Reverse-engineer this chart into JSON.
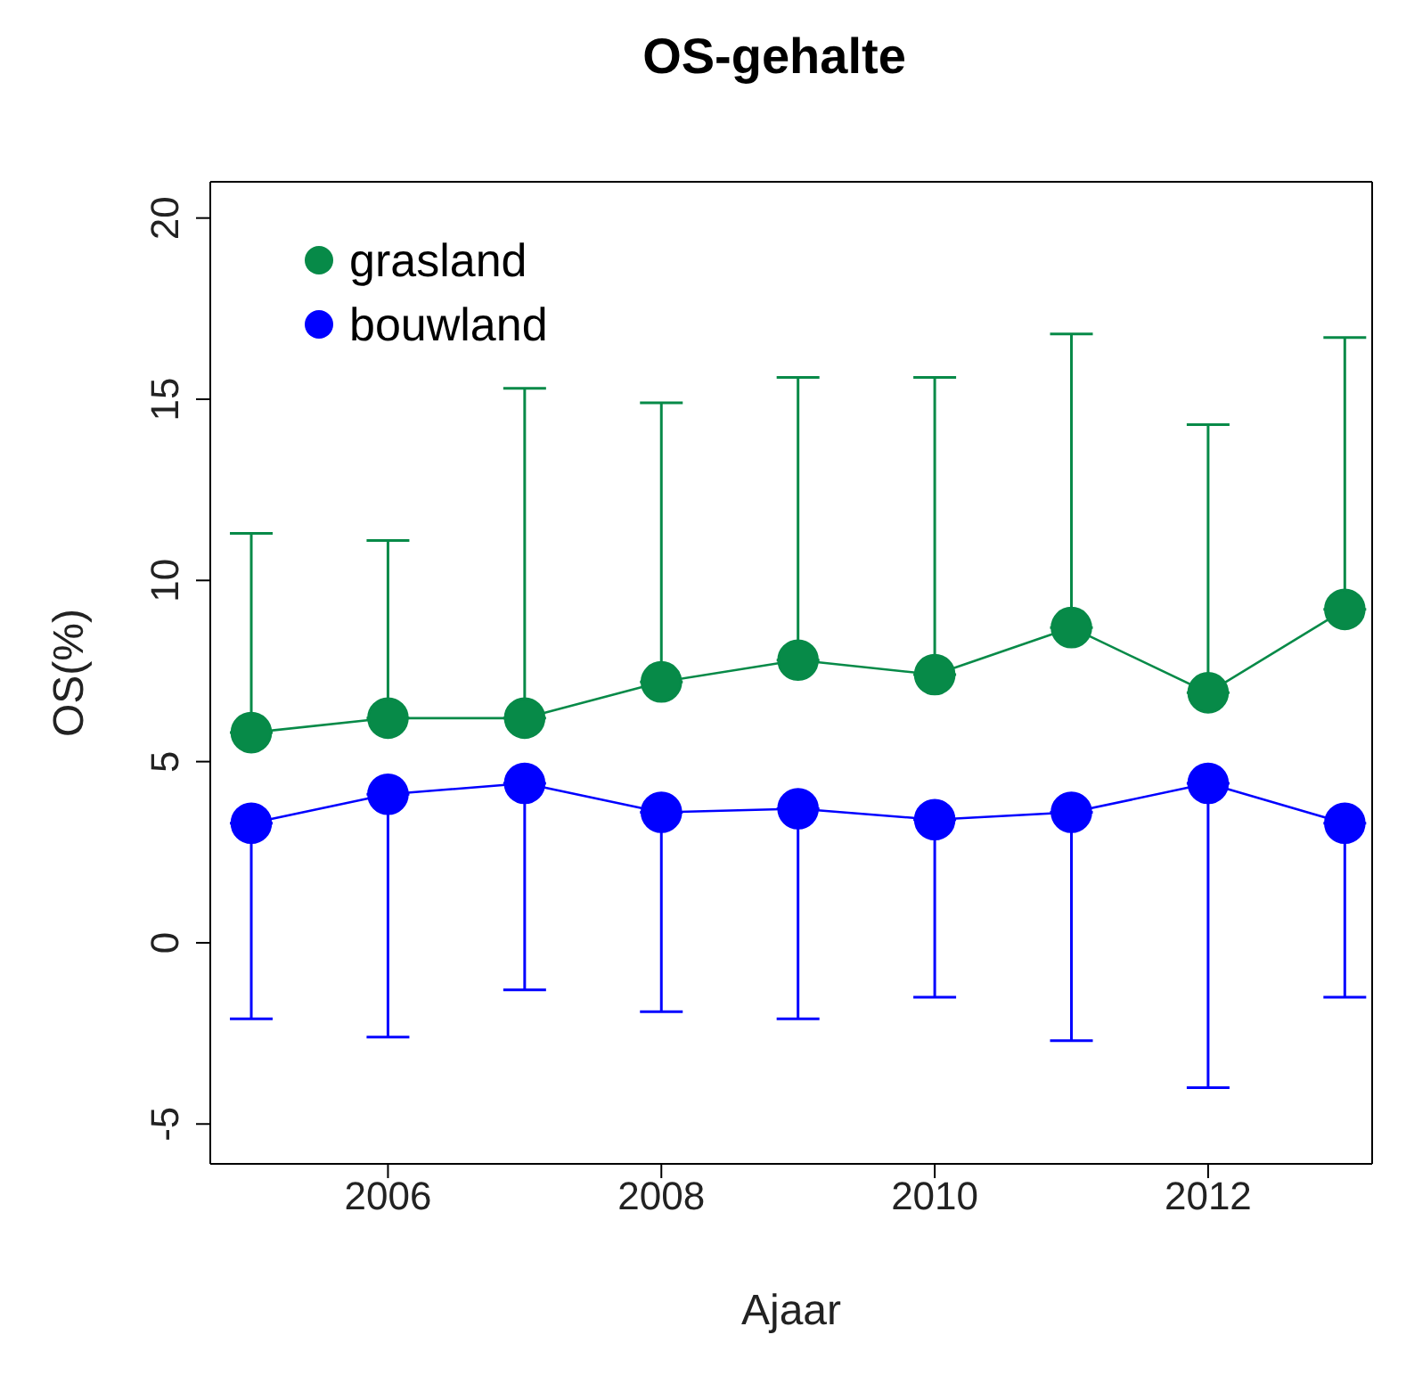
{
  "chart_data": {
    "type": "line",
    "title": "OS-gehalte",
    "xlabel": "Ajaar",
    "ylabel": "OS(%)",
    "x": [
      2005,
      2006,
      2007,
      2008,
      2009,
      2010,
      2011,
      2012,
      2013
    ],
    "series": [
      {
        "name": "grasland",
        "color": "#078a48",
        "values": [
          5.8,
          6.2,
          6.2,
          7.2,
          7.8,
          7.4,
          8.7,
          6.9,
          9.2
        ],
        "errors": [
          [
            5.8,
            11.3
          ],
          [
            6.2,
            11.1
          ],
          [
            6.2,
            15.3
          ],
          [
            7.2,
            14.9
          ],
          [
            7.8,
            15.6
          ],
          [
            7.4,
            15.6
          ],
          [
            8.7,
            16.8
          ],
          [
            6.9,
            14.3
          ],
          [
            9.2,
            16.7
          ]
        ]
      },
      {
        "name": "bouwland",
        "color": "#0000ff",
        "values": [
          3.3,
          4.1,
          4.4,
          3.6,
          3.7,
          3.4,
          3.6,
          4.4,
          3.3
        ],
        "errors": [
          [
            -2.1,
            3.3
          ],
          [
            -2.6,
            4.1
          ],
          [
            -1.3,
            4.4
          ],
          [
            -1.9,
            3.6
          ],
          [
            -2.1,
            3.7
          ],
          [
            -1.5,
            3.4
          ],
          [
            -2.7,
            3.6
          ],
          [
            -4.0,
            4.4
          ],
          [
            -1.5,
            3.3
          ]
        ]
      }
    ],
    "xlim": [
      2004.7,
      2013.2
    ],
    "xticks": [
      2006,
      2008,
      2010,
      2012
    ],
    "ylim": [
      -6.1,
      21
    ],
    "yticks": [
      -5,
      0,
      5,
      10,
      15,
      20
    ],
    "grid": false,
    "legend": "top left",
    "marker": "circle",
    "line_style": "solid"
  }
}
